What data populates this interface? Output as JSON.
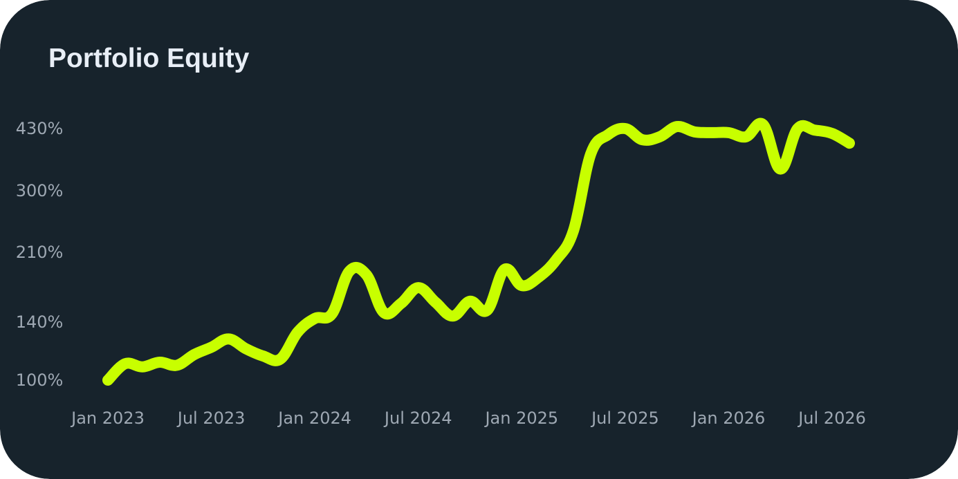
{
  "colors": {
    "background": "#17232c",
    "line": "#c8ff00",
    "title": "#e8eef6",
    "ticks": "#9ea8b3"
  },
  "chart_data": {
    "type": "line",
    "title": "Portfolio Equity",
    "xlabel": "",
    "ylabel": "",
    "y_scale": "log",
    "grid": false,
    "legend": "none",
    "x_ticks": [
      "Jan 2023",
      "Jul 2023",
      "Jan 2024",
      "Jul 2024",
      "Jan 2025",
      "Jul 2025",
      "Jan 2026",
      "Jul 2026"
    ],
    "y_ticks": [
      "100%",
      "140%",
      "210%",
      "300%",
      "430%"
    ],
    "y_tick_values": [
      100,
      140,
      210,
      300,
      430
    ],
    "series": [
      {
        "name": "",
        "x": [
          "2023-01-01",
          "2023-02-01",
          "2023-03-01",
          "2023-04-01",
          "2023-05-01",
          "2023-06-01",
          "2023-07-01",
          "2023-08-01",
          "2023-09-01",
          "2023-10-01",
          "2023-11-01",
          "2023-12-01",
          "2024-01-01",
          "2024-02-01",
          "2024-03-01",
          "2024-04-01",
          "2024-05-01",
          "2024-06-01",
          "2024-07-01",
          "2024-08-01",
          "2024-09-01",
          "2024-10-01",
          "2024-11-01",
          "2024-12-01",
          "2025-01-01",
          "2025-02-01",
          "2025-03-01",
          "2025-04-01",
          "2025-05-01",
          "2025-06-01",
          "2025-07-01",
          "2025-08-01",
          "2025-09-01",
          "2025-10-01",
          "2025-11-01",
          "2025-12-01",
          "2026-01-01",
          "2026-02-01",
          "2026-03-01",
          "2026-04-01",
          "2026-05-01",
          "2026-06-01",
          "2026-07-01",
          "2026-08-01"
        ],
        "values": [
          100,
          110,
          108,
          111,
          109,
          116,
          121,
          127,
          120,
          115,
          113,
          132,
          143,
          147,
          188,
          184,
          148,
          156,
          171,
          157,
          145,
          158,
          150,
          190,
          173,
          182,
          201,
          238,
          371,
          415,
          430,
          403,
          410,
          435,
          422,
          420,
          420,
          410,
          440,
          340,
          430,
          426,
          418,
          395
        ]
      }
    ]
  }
}
